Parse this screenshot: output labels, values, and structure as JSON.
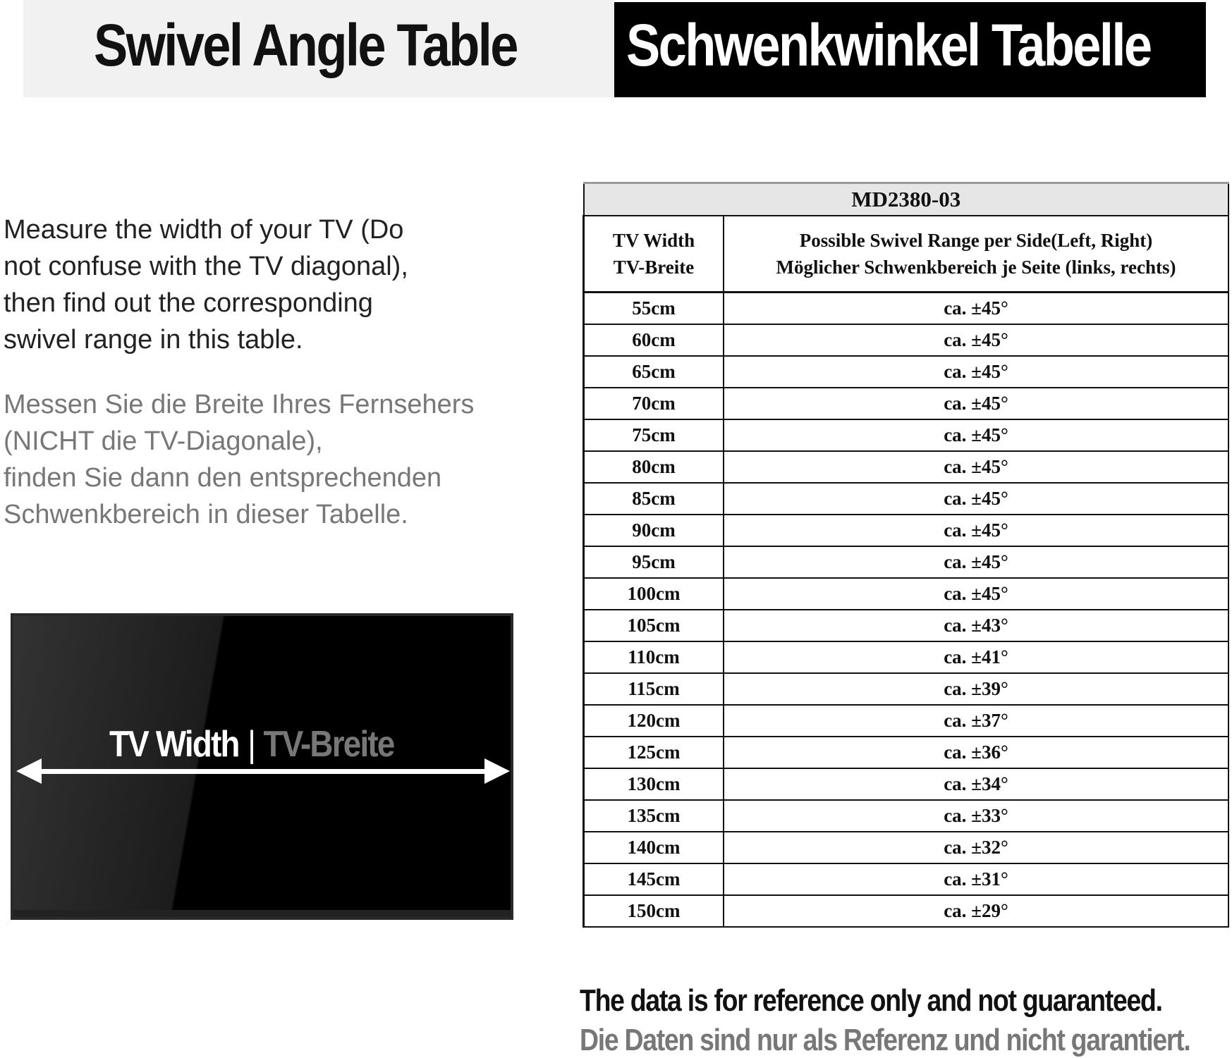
{
  "header": {
    "title_en": "Swivel Angle Table",
    "title_de": "Schwenkwinkel Tabelle"
  },
  "intro": {
    "en": "Measure the width of your TV (Do\nnot confuse with the TV diagonal),\nthen find out the corresponding\nswivel range in this table.",
    "de": "Messen Sie die Breite Ihres Fernsehers\n(NICHT die TV-Diagonale),\n finden Sie dann den entsprechenden\nSchwenkbereich in dieser Tabelle."
  },
  "tv_illustration": {
    "label_en": "TV Width",
    "separator": "|",
    "label_de": "TV-Breite",
    "icon": "double-arrow-horizontal"
  },
  "table": {
    "model": "MD2380-03",
    "col1_header": [
      "TV Width",
      "TV-Breite"
    ],
    "col2_header": [
      "Possible Swivel Range per Side(Left, Right)",
      "Möglicher Schwenkbereich je Seite (links, rechts)"
    ],
    "rows": [
      {
        "width": "55cm",
        "range": "ca. ±45°"
      },
      {
        "width": "60cm",
        "range": "ca. ±45°"
      },
      {
        "width": "65cm",
        "range": "ca. ±45°"
      },
      {
        "width": "70cm",
        "range": "ca. ±45°"
      },
      {
        "width": "75cm",
        "range": "ca. ±45°"
      },
      {
        "width": "80cm",
        "range": "ca. ±45°"
      },
      {
        "width": "85cm",
        "range": "ca. ±45°"
      },
      {
        "width": "90cm",
        "range": "ca. ±45°"
      },
      {
        "width": "95cm",
        "range": "ca. ±45°"
      },
      {
        "width": "100cm",
        "range": "ca. ±45°"
      },
      {
        "width": "105cm",
        "range": "ca. ±43°"
      },
      {
        "width": "110cm",
        "range": "ca. ±41°"
      },
      {
        "width": "115cm",
        "range": "ca. ±39°"
      },
      {
        "width": "120cm",
        "range": "ca. ±37°"
      },
      {
        "width": "125cm",
        "range": "ca. ±36°"
      },
      {
        "width": "130cm",
        "range": "ca. ±34°"
      },
      {
        "width": "135cm",
        "range": "ca. ±33°"
      },
      {
        "width": "140cm",
        "range": "ca. ±32°"
      },
      {
        "width": "145cm",
        "range": "ca. ±31°"
      },
      {
        "width": "150cm",
        "range": "ca. ±29°"
      }
    ]
  },
  "footer": {
    "en": "The data is for reference only and not guaranteed.",
    "de": "Die Daten sind nur als Referenz und nicht garantiert."
  }
}
